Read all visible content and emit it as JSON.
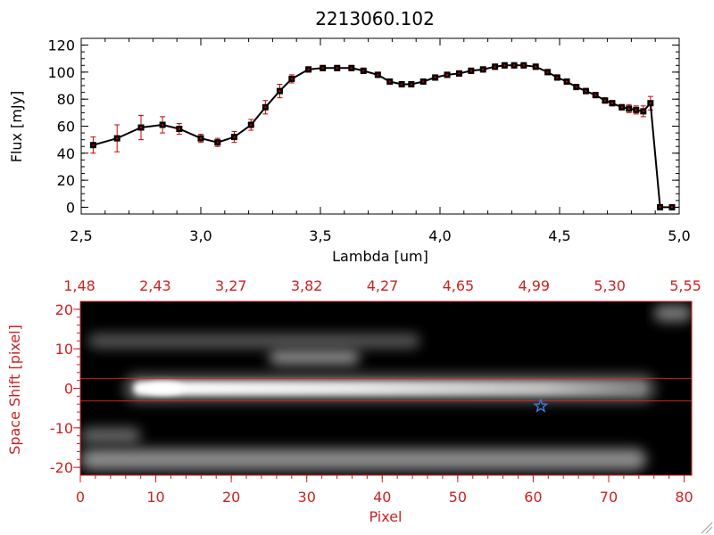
{
  "colors": {
    "spectrum_line": "#000000",
    "error_bar": "#cc0000",
    "image_axes": "#cc2222",
    "aperture": "#cc2222",
    "star_marker": "#3a78d8"
  },
  "chart_data": [
    {
      "type": "line",
      "title": "2213060.102",
      "xlabel": "Lambda [um]",
      "ylabel": "Flux [mJy]",
      "xlim": [
        2.5,
        5.0
      ],
      "ylim": [
        -5,
        125
      ],
      "x_ticks": [
        "2.5",
        "3.0",
        "3.5",
        "4.0",
        "4.5",
        "5.0"
      ],
      "y_ticks": [
        "0",
        "20",
        "40",
        "60",
        "80",
        "100",
        "120"
      ],
      "series": [
        {
          "name": "flux",
          "x": [
            2.55,
            2.65,
            2.75,
            2.84,
            2.91,
            3.0,
            3.07,
            3.14,
            3.21,
            3.27,
            3.33,
            3.38,
            3.45,
            3.51,
            3.57,
            3.63,
            3.68,
            3.74,
            3.79,
            3.84,
            3.88,
            3.93,
            3.98,
            4.03,
            4.08,
            4.13,
            4.18,
            4.23,
            4.27,
            4.31,
            4.35,
            4.4,
            4.45,
            4.49,
            4.53,
            4.57,
            4.61,
            4.65,
            4.69,
            4.72,
            4.76,
            4.79,
            4.82,
            4.85,
            4.88,
            4.92,
            4.97
          ],
          "y": [
            46,
            51,
            59,
            61,
            58,
            51,
            48,
            52,
            61,
            74,
            86,
            95,
            102,
            103,
            103,
            103,
            101,
            98,
            93,
            91,
            91,
            93,
            96,
            98,
            99,
            101,
            102,
            104,
            105,
            105,
            105,
            104,
            100,
            96,
            93,
            89,
            86,
            83,
            79,
            77,
            74,
            73,
            72,
            71,
            77,
            0,
            0
          ],
          "err": [
            6,
            10,
            9,
            6,
            4,
            3,
            3,
            4,
            4,
            5,
            5,
            3,
            2,
            2,
            2,
            2,
            2,
            2,
            2,
            2,
            2,
            2,
            2,
            2,
            2,
            2,
            2,
            2,
            2,
            2,
            2,
            2,
            2,
            2,
            2,
            2,
            2,
            2,
            2,
            2,
            2,
            3,
            3,
            4,
            5,
            1,
            1
          ]
        }
      ]
    },
    {
      "type": "heatmap",
      "xlabel": "Pixel",
      "ylabel": "Space Shift [pixel]",
      "xlim": [
        0,
        81
      ],
      "ylim": [
        -22,
        22
      ],
      "x_ticks": [
        "0",
        "10",
        "20",
        "30",
        "40",
        "50",
        "60",
        "70",
        "80"
      ],
      "y_ticks": [
        "-20",
        "-10",
        "0",
        "10",
        "20"
      ],
      "top_axis_ticks": [
        "1.48",
        "2.43",
        "3.27",
        "3.82",
        "4.27",
        "4.65",
        "4.99",
        "5.30",
        "5.55"
      ],
      "aperture_lines": [
        2.5,
        -3.2
      ],
      "star_marker": {
        "x": 61,
        "y": -4.5
      },
      "features": [
        {
          "name": "main trace",
          "x": [
            7,
            75
          ],
          "y": 0,
          "peak_x": 11,
          "intensity": 1.0
        },
        {
          "name": "upper blob",
          "x": [
            25,
            37
          ],
          "y": 8,
          "intensity": 0.55
        },
        {
          "name": "upper band",
          "x": [
            1,
            45
          ],
          "y": 12,
          "intensity": 0.35
        },
        {
          "name": "lower band",
          "x": [
            0,
            75
          ],
          "y": -18,
          "intensity": 0.55
        },
        {
          "name": "lower-left streak",
          "x": [
            0,
            8
          ],
          "y": -12,
          "intensity": 0.4
        },
        {
          "name": "corner blob",
          "x": [
            76,
            81
          ],
          "y": 19,
          "intensity": 0.5
        }
      ]
    }
  ]
}
